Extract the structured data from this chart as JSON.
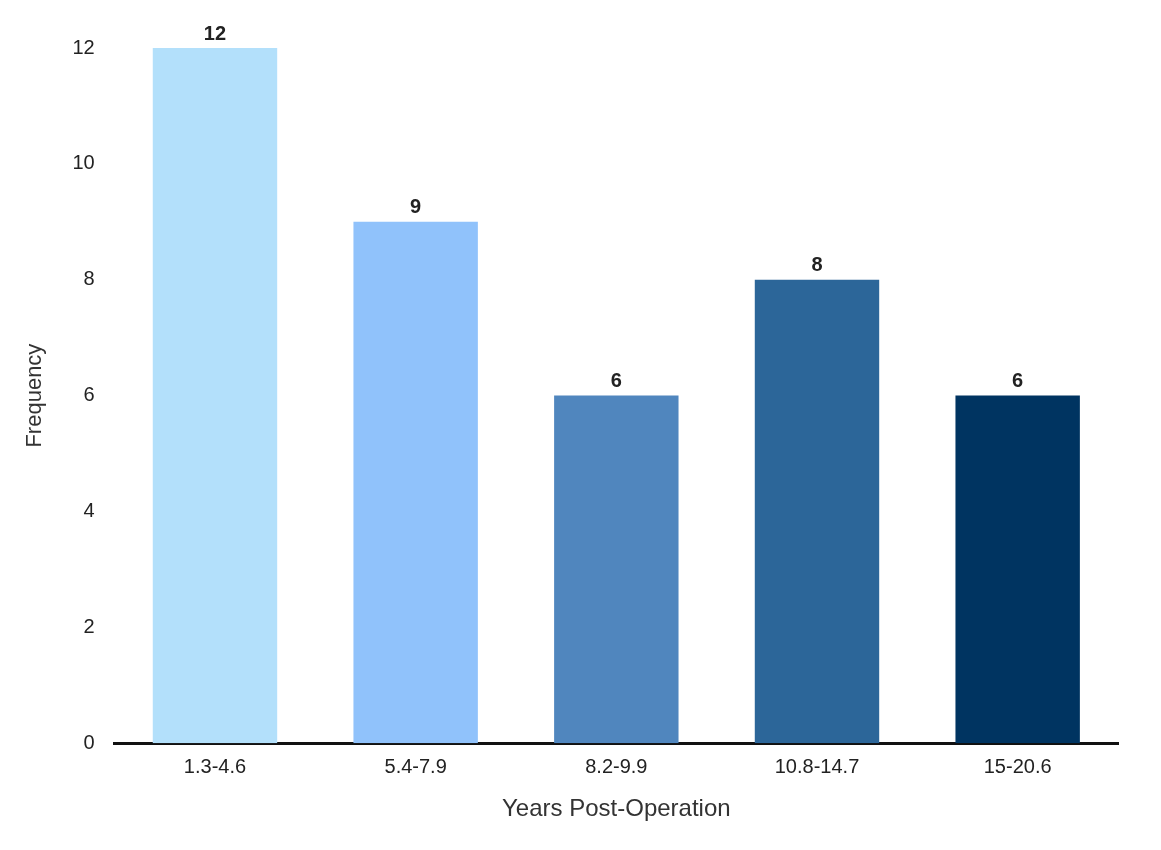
{
  "chart_data": {
    "type": "bar",
    "xlabel": "Years Post-Operation",
    "ylabel": "Frequency",
    "categories": [
      "1.3-4.6",
      "5.4-7.9",
      "8.2-9.9",
      "10.8-14.7",
      "15-20.6"
    ],
    "values": [
      12,
      9,
      6,
      8,
      6
    ],
    "colors": [
      "#b3e0fb",
      "#90c2fb",
      "#5086be",
      "#2c6699",
      "#003461"
    ],
    "ylim": [
      0,
      12
    ],
    "yticks": [
      0,
      2,
      4,
      6,
      8,
      10,
      12
    ],
    "grid": false,
    "data_labels": true
  }
}
